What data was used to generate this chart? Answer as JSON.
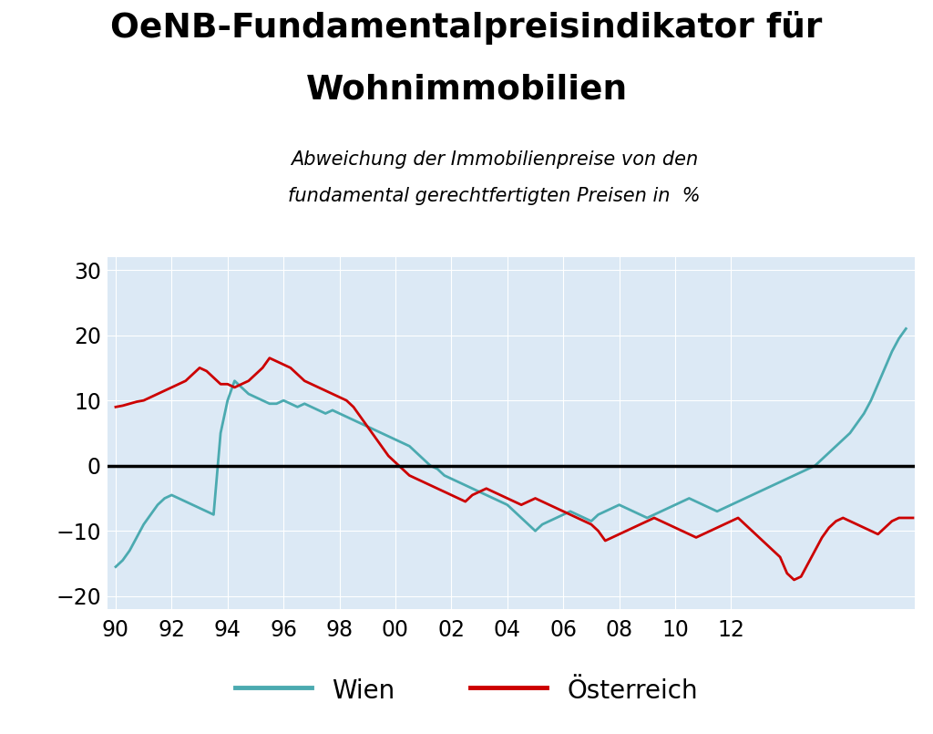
{
  "title_line1": "OeNB-Fundamentalpreisindikator für",
  "title_line2": "Wohnimmobilien",
  "subtitle_line1": "Abweichung der Immobilienpreise von den",
  "subtitle_line2": "fundamental gerechtfertigten Preisen in  %",
  "fig_bg_color": "#ffffff",
  "plot_bg_color": "#dce9f5",
  "wien_color": "#4baab0",
  "oesterreich_color": "#cc0000",
  "zero_line_color": "#000000",
  "grid_color": "#ffffff",
  "ylim": [
    -22,
    32
  ],
  "yticks": [
    -20,
    -10,
    0,
    10,
    20,
    30
  ],
  "xtick_labels": [
    "90",
    "92",
    "94",
    "96",
    "98",
    "00",
    "02",
    "04",
    "06",
    "08",
    "10",
    "12"
  ],
  "legend_wien": "Wien",
  "legend_oesterreich": "Österreich",
  "wien_data": [
    -15.5,
    -14.5,
    -13.0,
    -11.0,
    -9.0,
    -7.5,
    -6.0,
    -5.0,
    -4.5,
    -5.0,
    -5.5,
    -6.0,
    -6.5,
    -7.0,
    -7.5,
    5.0,
    10.0,
    13.0,
    12.0,
    11.0,
    10.5,
    10.0,
    9.5,
    9.5,
    10.0,
    9.5,
    9.0,
    9.5,
    9.0,
    8.5,
    8.0,
    8.5,
    8.0,
    7.5,
    7.0,
    6.5,
    6.0,
    5.5,
    5.0,
    4.5,
    4.0,
    3.5,
    3.0,
    2.0,
    1.0,
    0.0,
    -0.5,
    -1.5,
    -2.0,
    -2.5,
    -3.0,
    -3.5,
    -4.0,
    -4.5,
    -5.0,
    -5.5,
    -6.0,
    -7.0,
    -8.0,
    -9.0,
    -10.0,
    -9.0,
    -8.5,
    -8.0,
    -7.5,
    -7.0,
    -7.5,
    -8.0,
    -8.5,
    -7.5,
    -7.0,
    -6.5,
    -6.0,
    -6.5,
    -7.0,
    -7.5,
    -8.0,
    -7.5,
    -7.0,
    -6.5,
    -6.0,
    -5.5,
    -5.0,
    -5.5,
    -6.0,
    -6.5,
    -7.0,
    -6.5,
    -6.0,
    -5.5,
    -5.0,
    -4.5,
    -4.0,
    -3.5,
    -3.0,
    -2.5,
    -2.0,
    -1.5,
    -1.0,
    -0.5,
    0.0,
    1.0,
    2.0,
    3.0,
    4.0,
    5.0,
    6.5,
    8.0,
    10.0,
    12.5,
    15.0,
    17.5,
    19.5,
    21.0
  ],
  "oesterreich_data": [
    9.0,
    9.2,
    9.5,
    9.8,
    10.0,
    10.5,
    11.0,
    11.5,
    12.0,
    12.5,
    13.0,
    14.0,
    15.0,
    14.5,
    13.5,
    12.5,
    12.5,
    12.0,
    12.5,
    13.0,
    14.0,
    15.0,
    16.5,
    16.0,
    15.5,
    15.0,
    14.0,
    13.0,
    12.5,
    12.0,
    11.5,
    11.0,
    10.5,
    10.0,
    9.0,
    7.5,
    6.0,
    4.5,
    3.0,
    1.5,
    0.5,
    -0.5,
    -1.5,
    -2.0,
    -2.5,
    -3.0,
    -3.5,
    -4.0,
    -4.5,
    -5.0,
    -5.5,
    -4.5,
    -4.0,
    -3.5,
    -4.0,
    -4.5,
    -5.0,
    -5.5,
    -6.0,
    -5.5,
    -5.0,
    -5.5,
    -6.0,
    -6.5,
    -7.0,
    -7.5,
    -8.0,
    -8.5,
    -9.0,
    -10.0,
    -11.5,
    -11.0,
    -10.5,
    -10.0,
    -9.5,
    -9.0,
    -8.5,
    -8.0,
    -8.5,
    -9.0,
    -9.5,
    -10.0,
    -10.5,
    -11.0,
    -10.5,
    -10.0,
    -9.5,
    -9.0,
    -8.5,
    -8.0,
    -9.0,
    -10.0,
    -11.0,
    -12.0,
    -13.0,
    -14.0,
    -16.5,
    -17.5,
    -17.0,
    -15.0,
    -13.0,
    -11.0,
    -9.5,
    -8.5,
    -8.0,
    -8.5,
    -9.0,
    -9.5,
    -10.0,
    -10.5,
    -9.5,
    -8.5,
    -8.0,
    -8.0,
    -8.0
  ]
}
